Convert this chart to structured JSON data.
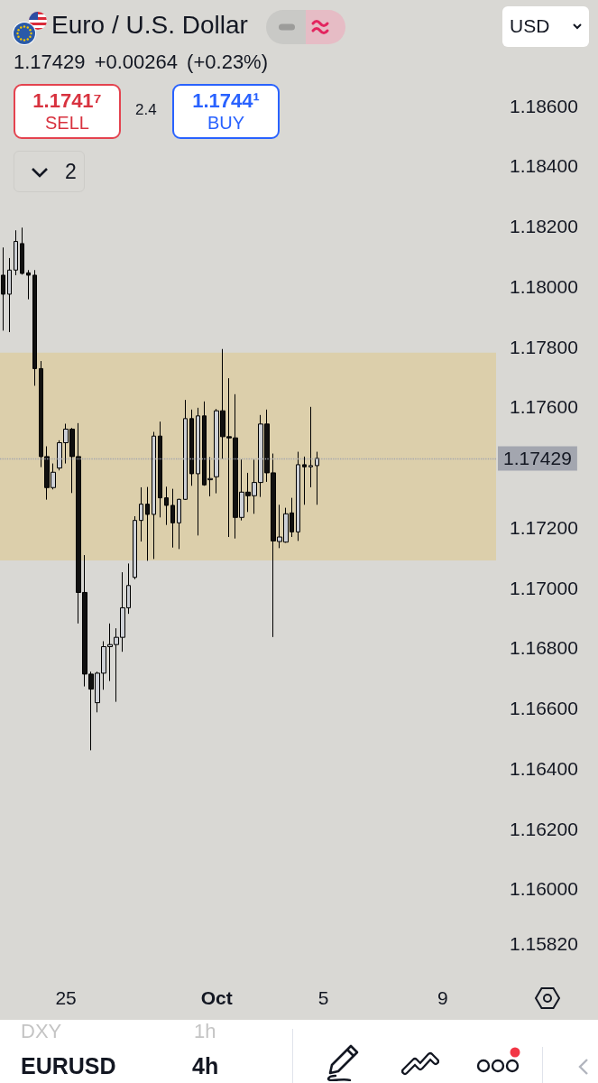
{
  "chart_data": {
    "type": "candlestick",
    "title": "Euro / U.S. Dollar",
    "subtitle": "1.17429 +0.00264 (+0.23%)",
    "categories": [
      null,
      null,
      null,
      null,
      null,
      null,
      null,
      null,
      null,
      null,
      "25",
      null,
      null,
      null,
      null,
      null,
      null,
      null,
      null,
      null,
      null,
      null,
      null,
      null,
      null,
      null,
      null,
      null,
      null,
      null,
      null,
      null,
      null,
      null,
      "Oct",
      null,
      null,
      null,
      null,
      null,
      null,
      null,
      null,
      null,
      null,
      null,
      null,
      null,
      null,
      null,
      null,
      "5",
      null,
      null,
      null,
      null,
      null,
      null,
      null,
      null,
      null,
      null,
      null,
      null,
      null,
      null,
      null,
      null,
      null,
      null,
      "9",
      null,
      null,
      null,
      null,
      null,
      null,
      null,
      null
    ],
    "ohlc": [
      [
        1.18037,
        1.18129,
        1.17853,
        1.17974
      ],
      [
        1.17974,
        1.18094,
        1.17848,
        1.18054
      ],
      [
        1.18054,
        1.18186,
        1.18037,
        1.18149
      ],
      [
        1.18142,
        1.18195,
        1.18039,
        1.18043
      ],
      [
        1.18045,
        1.18054,
        1.17957,
        1.18037
      ],
      [
        1.18037,
        1.18054,
        1.1767,
        1.17727
      ],
      [
        1.17727,
        1.17752,
        1.174,
        1.17435
      ],
      [
        1.17435,
        1.17469,
        1.17292,
        1.17332
      ],
      [
        1.17332,
        1.17412,
        1.17326,
        1.17383
      ],
      [
        1.17397,
        1.17489,
        1.17389,
        1.17481
      ],
      [
        1.17481,
        1.17544,
        1.17412,
        1.17526
      ],
      [
        1.17526,
        1.1753,
        1.17314,
        1.17435
      ],
      [
        1.17435,
        1.17546,
        1.16881,
        1.16984
      ],
      [
        1.16984,
        1.17108,
        1.16672,
        1.16713
      ],
      [
        1.16713,
        1.16721,
        1.1646,
        1.16663
      ],
      [
        1.16618,
        1.16721,
        1.16586,
        1.16716
      ],
      [
        1.16716,
        1.16822,
        1.16661,
        1.16804
      ],
      [
        1.16804,
        1.16881,
        1.1669,
        1.16811
      ],
      [
        1.16811,
        1.16865,
        1.16621,
        1.16835
      ],
      [
        1.16835,
        1.17051,
        1.16787,
        1.16933
      ],
      [
        1.16933,
        1.1708,
        1.16913,
        1.17007
      ],
      [
        1.17034,
        1.17237,
        1.17028,
        1.17223
      ],
      [
        1.17223,
        1.17333,
        1.17153,
        1.17277
      ],
      [
        1.17277,
        1.17334,
        1.17089,
        1.17243
      ],
      [
        1.17243,
        1.17517,
        1.17095,
        1.17503
      ],
      [
        1.17503,
        1.17551,
        1.17233,
        1.17298
      ],
      [
        1.17298,
        1.17335,
        1.17208,
        1.17273
      ],
      [
        1.17273,
        1.17328,
        1.17133,
        1.17215
      ],
      [
        1.17215,
        1.17295,
        1.17128,
        1.17293
      ],
      [
        1.17293,
        1.17623,
        1.17291,
        1.17561
      ],
      [
        1.17561,
        1.17591,
        1.17338,
        1.17378
      ],
      [
        1.17378,
        1.17597,
        1.17173,
        1.1757
      ],
      [
        1.1757,
        1.17618,
        1.17338,
        1.17341
      ],
      [
        1.17358,
        1.17433,
        1.17303,
        1.17362
      ],
      [
        1.17368,
        1.17593,
        1.17313,
        1.17587
      ],
      [
        1.17587,
        1.17792,
        1.17428,
        1.17501
      ],
      [
        1.17501,
        1.17695,
        1.17168,
        1.17497
      ],
      [
        1.17497,
        1.17642,
        1.17163,
        1.17233
      ],
      [
        1.17233,
        1.17425,
        1.17223,
        1.17317
      ],
      [
        1.17317,
        1.17381,
        1.17251,
        1.17305
      ],
      [
        1.17305,
        1.17425,
        1.17245,
        1.17349
      ],
      [
        1.17349,
        1.17573,
        1.17301,
        1.17543
      ],
      [
        1.17543,
        1.17591,
        1.17351,
        1.17381
      ],
      [
        1.17381,
        1.17445,
        1.16836,
        1.17155
      ],
      [
        1.17153,
        1.17275,
        1.17131,
        1.17168
      ],
      [
        1.17151,
        1.17265,
        1.17149,
        1.17245
      ],
      [
        1.17248,
        1.17298,
        1.17168,
        1.17185
      ],
      [
        1.17185,
        1.17451,
        1.17155,
        1.17408
      ],
      [
        1.17408,
        1.17435,
        1.17275,
        1.17401
      ],
      [
        1.17401,
        1.176,
        1.17333,
        1.17405
      ],
      [
        1.17405,
        1.17451,
        1.17275,
        1.17429
      ],
      null,
      null,
      null,
      null,
      null,
      null,
      null,
      null,
      null,
      null,
      null,
      null,
      null,
      null,
      null,
      null,
      null,
      null,
      null,
      null,
      null,
      null,
      null,
      null,
      null,
      null,
      null,
      null
    ],
    "ylim": [
      1.1582,
      1.186
    ],
    "yticks": [
      {
        "value": 1.1582,
        "label": "1.15820"
      },
      {
        "value": 1.16,
        "label": "1.16000"
      },
      {
        "value": 1.162,
        "label": "1.16200"
      },
      {
        "value": 1.164,
        "label": "1.16400"
      },
      {
        "value": 1.166,
        "label": "1.16600"
      },
      {
        "value": 1.168,
        "label": "1.16800"
      },
      {
        "value": 1.17,
        "label": "1.17000"
      },
      {
        "value": 1.172,
        "label": "1.17200"
      },
      {
        "value": 1.176,
        "label": "1.17600"
      },
      {
        "value": 1.178,
        "label": "1.17800"
      },
      {
        "value": 1.18,
        "label": "1.18000"
      },
      {
        "value": 1.182,
        "label": "1.18200"
      },
      {
        "value": 1.184,
        "label": "1.18400"
      },
      {
        "value": 1.186,
        "label": "1.18600"
      }
    ],
    "ref_lines": [
      {
        "axis": "y",
        "value": 1.17429,
        "label": "1.17429",
        "color": "#a3a6af",
        "line_style": "dotted"
      }
    ],
    "bands": [
      {
        "axis": "y",
        "from": 1.1709,
        "to": 1.1778,
        "color": "#dccfab"
      }
    ],
    "annotations": [
      "1.1741⁷",
      "SELL",
      "2.4",
      "1.1744¹",
      "BUY",
      "2",
      "USD",
      "DXY",
      "1h",
      "EURUSD",
      "4h"
    ]
  }
}
